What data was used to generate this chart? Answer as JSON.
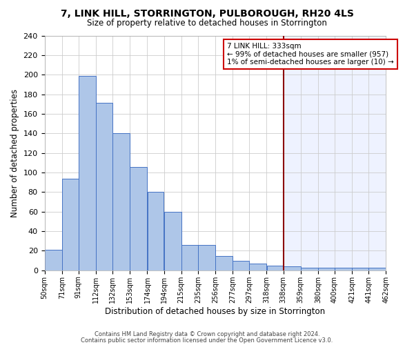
{
  "title": "7, LINK HILL, STORRINGTON, PULBOROUGH, RH20 4LS",
  "subtitle": "Size of property relative to detached houses in Storrington",
  "xlabel": "Distribution of detached houses by size in Storrington",
  "ylabel": "Number of detached properties",
  "bar_left_edges": [
    50,
    71,
    91,
    112,
    132,
    153,
    174,
    194,
    215,
    235,
    256,
    277,
    297,
    318,
    338,
    359,
    380,
    400,
    421,
    441
  ],
  "bar_widths": [
    21,
    20,
    21,
    20,
    21,
    21,
    20,
    21,
    20,
    21,
    21,
    20,
    21,
    20,
    21,
    21,
    20,
    21,
    20,
    21
  ],
  "bar_heights": [
    21,
    94,
    199,
    171,
    140,
    106,
    80,
    60,
    26,
    26,
    15,
    10,
    7,
    5,
    4,
    3,
    3,
    3,
    3,
    3
  ],
  "bar_color": "#aec6e8",
  "bar_edge_color": "#4472c4",
  "tick_labels": [
    "50sqm",
    "71sqm",
    "91sqm",
    "112sqm",
    "132sqm",
    "153sqm",
    "174sqm",
    "194sqm",
    "215sqm",
    "235sqm",
    "256sqm",
    "277sqm",
    "297sqm",
    "318sqm",
    "338sqm",
    "359sqm",
    "380sqm",
    "400sqm",
    "421sqm",
    "441sqm",
    "462sqm"
  ],
  "ylim": [
    0,
    240
  ],
  "yticks": [
    0,
    20,
    40,
    60,
    80,
    100,
    120,
    140,
    160,
    180,
    200,
    220,
    240
  ],
  "xlim_left": 50,
  "xlim_right": 462,
  "vline_x": 338,
  "vline_color": "#8b0000",
  "annotation_title": "7 LINK HILL: 333sqm",
  "annotation_line1": "← 99% of detached houses are smaller (957)",
  "annotation_line2": "1% of semi-detached houses are larger (10) →",
  "bg_color_left": "#ffffff",
  "bg_color_right": "#eef2ff",
  "grid_color": "#cccccc",
  "footer1": "Contains HM Land Registry data © Crown copyright and database right 2024.",
  "footer2": "Contains public sector information licensed under the Open Government Licence v3.0."
}
